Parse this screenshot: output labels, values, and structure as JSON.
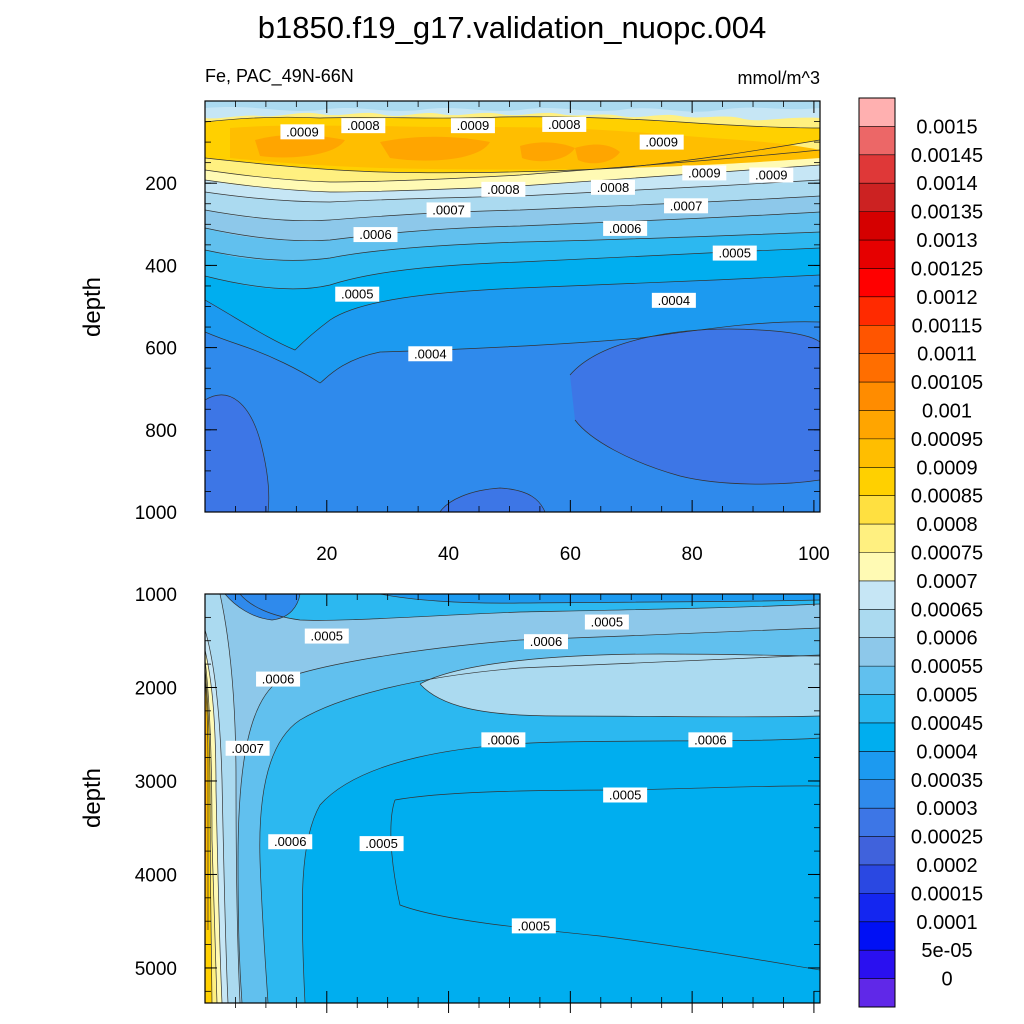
{
  "figure": {
    "title": "b1850.f19_g17.validation_nuopc.004",
    "variable_label": "Fe, PAC_49N-66N",
    "units_label": "mmol/m^3"
  },
  "chart_data": [
    {
      "type": "heatmap",
      "panel": "upper",
      "ylabel": "depth",
      "xlabel": "",
      "x_ticks": [
        "20",
        "40",
        "60",
        "80",
        "100"
      ],
      "x_tick_values": [
        20,
        40,
        60,
        80,
        100
      ],
      "y_ticks": [
        "200",
        "400",
        "600",
        "800",
        "1000"
      ],
      "y_tick_values": [
        200,
        400,
        600,
        800,
        1000
      ],
      "xlim": [
        0,
        101
      ],
      "ylim": [
        0,
        1000
      ],
      "y_inverted": true,
      "contour_labels": [
        {
          "text": ".0009",
          "x": 16,
          "y": 75
        },
        {
          "text": ".0008",
          "x": 26,
          "y": 60
        },
        {
          "text": ".0009",
          "x": 44,
          "y": 60
        },
        {
          "text": ".0008",
          "x": 59,
          "y": 57
        },
        {
          "text": ".0009",
          "x": 75,
          "y": 100
        },
        {
          "text": ".0009",
          "x": 82,
          "y": 175
        },
        {
          "text": ".0009",
          "x": 93,
          "y": 180
        },
        {
          "text": ".0008",
          "x": 49,
          "y": 215
        },
        {
          "text": ".0008",
          "x": 67,
          "y": 210
        },
        {
          "text": ".0007",
          "x": 40,
          "y": 265
        },
        {
          "text": ".0007",
          "x": 79,
          "y": 255
        },
        {
          "text": ".0006",
          "x": 28,
          "y": 325
        },
        {
          "text": ".0006",
          "x": 69,
          "y": 310
        },
        {
          "text": ".0005",
          "x": 87,
          "y": 370
        },
        {
          "text": ".0005",
          "x": 25,
          "y": 470
        },
        {
          "text": ".0004",
          "x": 77,
          "y": 485
        },
        {
          "text": ".0004",
          "x": 37,
          "y": 615
        }
      ]
    },
    {
      "type": "heatmap",
      "panel": "lower",
      "ylabel": "depth",
      "xlabel": "",
      "y_ticks": [
        "1000",
        "2000",
        "3000",
        "4000",
        "5000"
      ],
      "y_tick_values": [
        1000,
        2000,
        3000,
        4000,
        5000
      ],
      "xlim": [
        0,
        101
      ],
      "ylim": [
        1000,
        5375
      ],
      "y_inverted": true,
      "contour_labels": [
        {
          "text": ".0005",
          "x": 20,
          "y": 1450
        },
        {
          "text": ".0006",
          "x": 12,
          "y": 1910
        },
        {
          "text": ".0006",
          "x": 56,
          "y": 1510
        },
        {
          "text": ".0005",
          "x": 66,
          "y": 1300
        },
        {
          "text": ".0006",
          "x": 49,
          "y": 2560
        },
        {
          "text": ".0006",
          "x": 83,
          "y": 2560
        },
        {
          "text": ".0007",
          "x": 7,
          "y": 2650
        },
        {
          "text": ".0006",
          "x": 14,
          "y": 3650
        },
        {
          "text": ".0005",
          "x": 29,
          "y": 3670
        },
        {
          "text": ".0005",
          "x": 69,
          "y": 3150
        },
        {
          "text": ".0005",
          "x": 54,
          "y": 4550
        }
      ]
    }
  ],
  "colorbar": {
    "labels": [
      "0.0015",
      "0.00145",
      "0.0014",
      "0.00135",
      "0.0013",
      "0.00125",
      "0.0012",
      "0.00115",
      "0.0011",
      "0.00105",
      "0.001",
      "0.00095",
      "0.0009",
      "0.00085",
      "0.0008",
      "0.00075",
      "0.0007",
      "0.00065",
      "0.0006",
      "0.00055",
      "0.0005",
      "0.00045",
      "0.0004",
      "0.00035",
      "0.0003",
      "0.00025",
      "0.0002",
      "0.00015",
      "0.0001",
      "5e-05",
      "0"
    ],
    "colors": [
      "#FFB0B0",
      "#EC6767",
      "#DF3838",
      "#CC2222",
      "#D50000",
      "#E60000",
      "#FF0000",
      "#FF2A00",
      "#FF5500",
      "#FF6E00",
      "#FF8C00",
      "#FFA500",
      "#FFBE00",
      "#FFD000",
      "#FFE040",
      "#FFF080",
      "#FFFAB4",
      "#C6E6F5",
      "#ABDAF0",
      "#8DC8EA",
      "#61C0EE",
      "#2CB8F0",
      "#00AEEF",
      "#1C9AF0",
      "#2F8AEC",
      "#3D76E6",
      "#4062DC",
      "#2A48E2",
      "#1426F0",
      "#0010F5",
      "#2A10F0",
      "#6028E8"
    ]
  }
}
